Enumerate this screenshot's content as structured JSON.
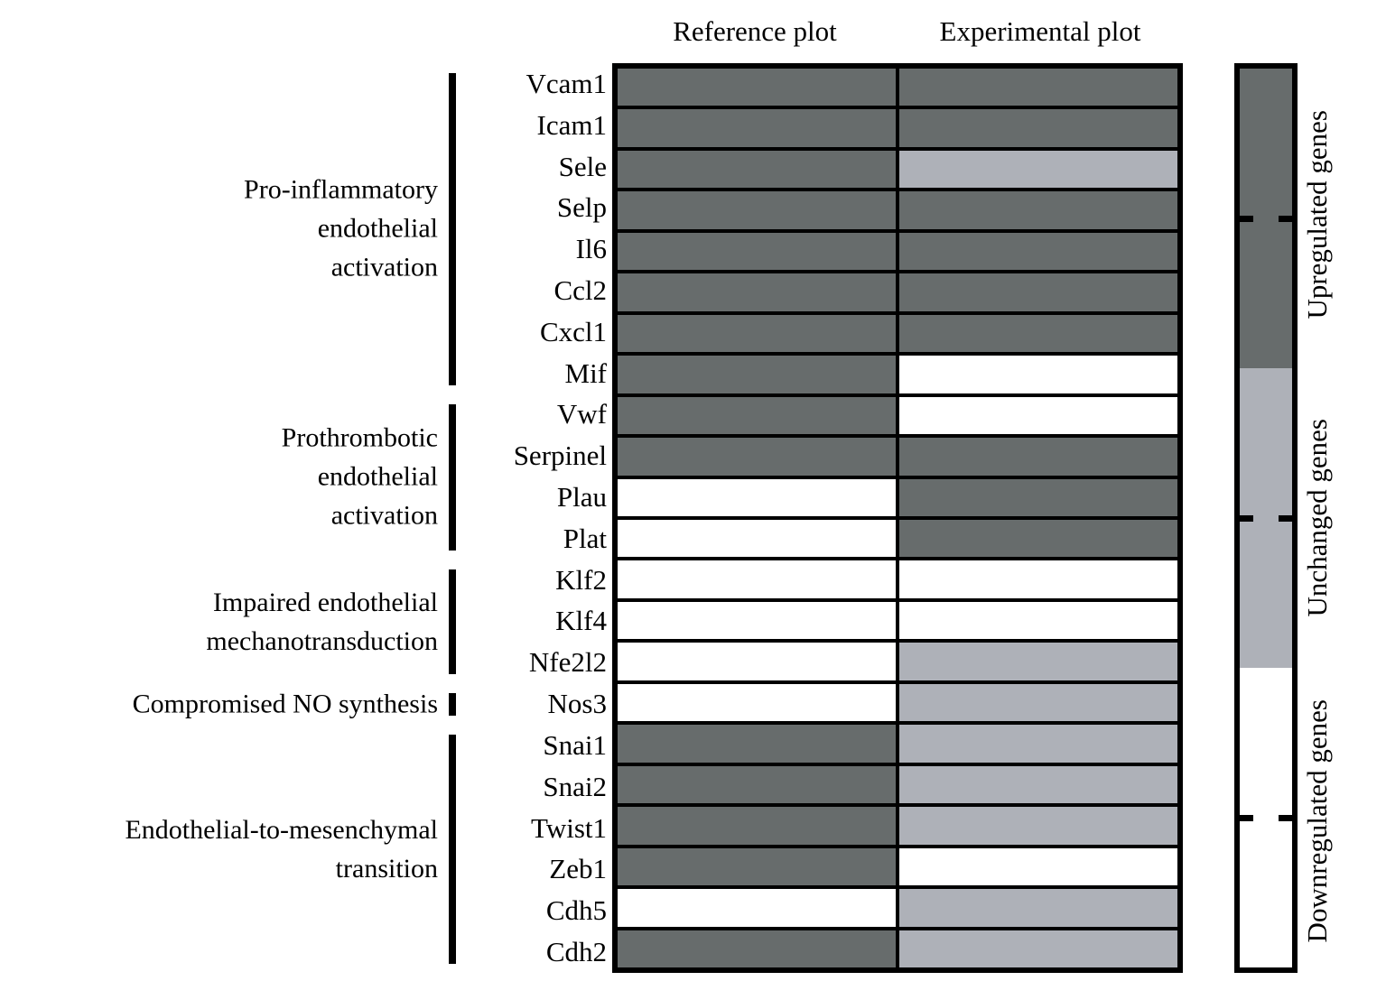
{
  "header": {
    "columns": [
      "Reference plot",
      "Experimental plot"
    ]
  },
  "colors": {
    "upregulated": "#676c6c",
    "unchanged": "#aeb1b8",
    "downregulated": "#ffffff",
    "line": "#000000"
  },
  "chart_data": {
    "type": "heatmap",
    "columns": [
      "Reference plot",
      "Experimental plot"
    ],
    "rows": [
      {
        "gene": "Vcam1",
        "reference": "upregulated",
        "experimental": "upregulated"
      },
      {
        "gene": "Icam1",
        "reference": "upregulated",
        "experimental": "upregulated"
      },
      {
        "gene": "Sele",
        "reference": "upregulated",
        "experimental": "unchanged"
      },
      {
        "gene": "Selp",
        "reference": "upregulated",
        "experimental": "upregulated"
      },
      {
        "gene": "Il6",
        "reference": "upregulated",
        "experimental": "upregulated"
      },
      {
        "gene": "Ccl2",
        "reference": "upregulated",
        "experimental": "upregulated"
      },
      {
        "gene": "Cxcl1",
        "reference": "upregulated",
        "experimental": "upregulated"
      },
      {
        "gene": "Mif",
        "reference": "upregulated",
        "experimental": "downregulated"
      },
      {
        "gene": "Vwf",
        "reference": "upregulated",
        "experimental": "downregulated"
      },
      {
        "gene": "Serpinel",
        "reference": "upregulated",
        "experimental": "upregulated"
      },
      {
        "gene": "Plau",
        "reference": "downregulated",
        "experimental": "upregulated"
      },
      {
        "gene": "Plat",
        "reference": "downregulated",
        "experimental": "upregulated"
      },
      {
        "gene": "Klf2",
        "reference": "downregulated",
        "experimental": "downregulated"
      },
      {
        "gene": "Klf4",
        "reference": "downregulated",
        "experimental": "downregulated"
      },
      {
        "gene": "Nfe2l2",
        "reference": "downregulated",
        "experimental": "unchanged"
      },
      {
        "gene": "Nos3",
        "reference": "downregulated",
        "experimental": "unchanged"
      },
      {
        "gene": "Snai1",
        "reference": "upregulated",
        "experimental": "unchanged"
      },
      {
        "gene": "Snai2",
        "reference": "upregulated",
        "experimental": "unchanged"
      },
      {
        "gene": "Twist1",
        "reference": "upregulated",
        "experimental": "unchanged"
      },
      {
        "gene": "Zeb1",
        "reference": "upregulated",
        "experimental": "downregulated"
      },
      {
        "gene": "Cdh5",
        "reference": "downregulated",
        "experimental": "unchanged"
      },
      {
        "gene": "Cdh2",
        "reference": "upregulated",
        "experimental": "unchanged"
      }
    ],
    "groups": [
      {
        "label": "Pro-inflammatory endothelial activation",
        "label_lines": [
          "Pro-inflammatory",
          "endothelial",
          "activation"
        ],
        "gene_count": 8
      },
      {
        "label": "Prothrombotic endothelial activation",
        "label_lines": [
          "Prothrombotic",
          "endothelial",
          "activation"
        ],
        "gene_count": 4
      },
      {
        "label": "Impaired endothelial mechanotransduction",
        "label_lines": [
          "Impaired endothelial",
          "mechanotransduction"
        ],
        "gene_count": 3
      },
      {
        "label": "Compromised NO synthesis",
        "label_lines": [
          "Compromised NO synthesis"
        ],
        "gene_count": 1
      },
      {
        "label": "Endothelial-to-mesenchymal transition",
        "label_lines": [
          "Endothelial-to-mesenchymal",
          "transition"
        ],
        "gene_count": 6
      }
    ],
    "legend": [
      {
        "label": "Upregulated genes",
        "value": "upregulated"
      },
      {
        "label": "Unchanged genes",
        "value": "unchanged"
      },
      {
        "label": "Downregulated genes",
        "value": "downregulated"
      }
    ],
    "legend_position": "right"
  }
}
